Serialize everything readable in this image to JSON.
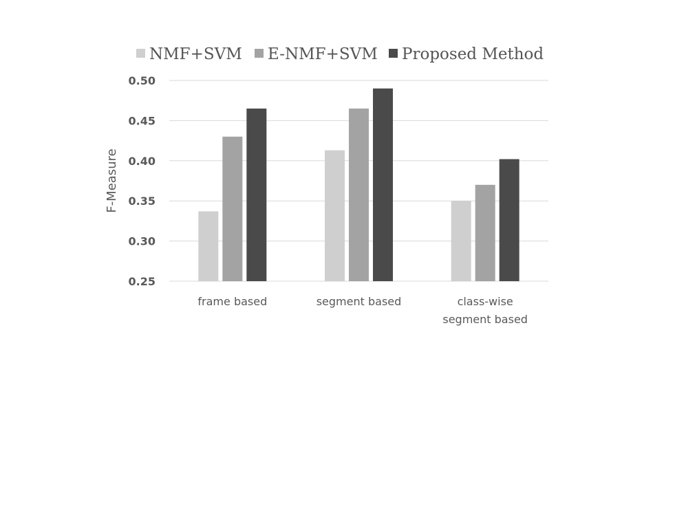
{
  "chart_data": {
    "type": "bar",
    "title": "",
    "xlabel": "",
    "ylabel": "F-Measure",
    "ylim": [
      0.25,
      0.5
    ],
    "yticks": [
      "0.50",
      "0.45",
      "0.40",
      "0.35",
      "0.30",
      "0.25"
    ],
    "ytick_values": [
      0.5,
      0.45,
      0.4,
      0.35,
      0.3,
      0.25
    ],
    "grid": true,
    "legend_position": "top",
    "categories": [
      [
        "frame based"
      ],
      [
        "segment based"
      ],
      [
        "class-wise",
        "segment based"
      ]
    ],
    "series": [
      {
        "name": "NMF+SVM",
        "color": "#cfcfcf",
        "values": [
          0.337,
          0.413,
          0.35
        ]
      },
      {
        "name": "E-NMF+SVM",
        "color": "#a3a3a3",
        "values": [
          0.43,
          0.465,
          0.37
        ]
      },
      {
        "name": "Proposed Method",
        "color": "#4a4a4a",
        "values": [
          0.465,
          0.49,
          0.402
        ]
      }
    ]
  }
}
